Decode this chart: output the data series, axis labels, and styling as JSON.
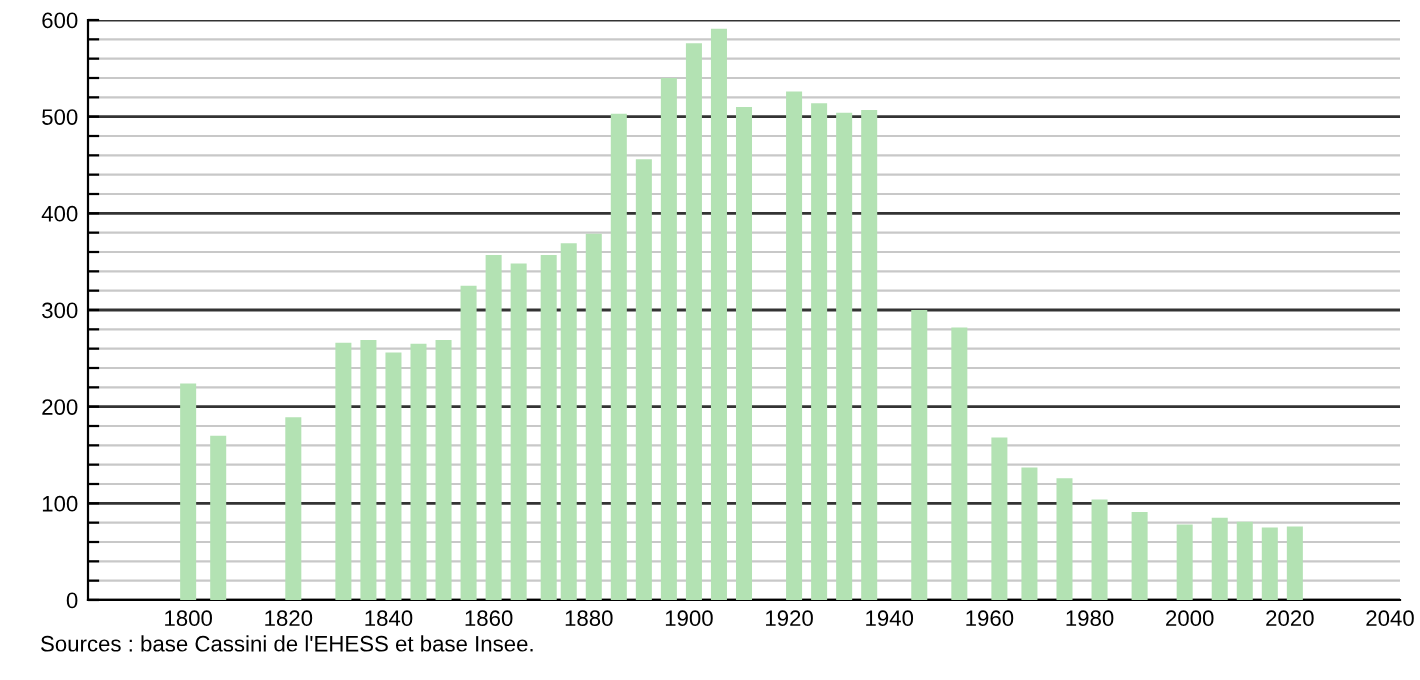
{
  "chart_data": {
    "type": "bar",
    "x": [
      1800,
      1806,
      1821,
      1831,
      1836,
      1841,
      1846,
      1851,
      1856,
      1861,
      1866,
      1872,
      1876,
      1881,
      1886,
      1891,
      1896,
      1901,
      1906,
      1911,
      1921,
      1926,
      1931,
      1936,
      1946,
      1954,
      1962,
      1968,
      1975,
      1982,
      1990,
      1999,
      2006,
      2011,
      2016,
      2021
    ],
    "values": [
      224,
      170,
      189,
      266,
      269,
      256,
      265,
      269,
      325,
      357,
      348,
      357,
      369,
      379,
      503,
      456,
      540,
      576,
      591,
      510,
      526,
      514,
      504,
      507,
      300,
      282,
      168,
      137,
      126,
      104,
      91,
      78,
      85,
      81,
      75,
      76
    ],
    "color": "#b3e2b3",
    "xlim": [
      1780,
      2042
    ],
    "xticks": [
      1800,
      1820,
      1840,
      1860,
      1880,
      1900,
      1920,
      1940,
      1960,
      1980,
      2000,
      2020,
      2040
    ],
    "ylim": [
      0,
      600
    ],
    "yticks": [
      0,
      {
        "value": 20,
        "label": null
      },
      {
        "value": 40,
        "label": null
      },
      {
        "value": 60,
        "label": null
      },
      {
        "value": 80,
        "label": null
      },
      100,
      {
        "value": 120,
        "label": null
      },
      {
        "value": 140,
        "label": null
      },
      {
        "value": 160,
        "label": null
      },
      {
        "value": 180,
        "label": null
      },
      200,
      {
        "value": 220,
        "label": null
      },
      {
        "value": 240,
        "label": null
      },
      {
        "value": 260,
        "label": null
      },
      {
        "value": 280,
        "label": null
      },
      300,
      {
        "value": 320,
        "label": null
      },
      {
        "value": 340,
        "label": null
      },
      {
        "value": 360,
        "label": null
      },
      {
        "value": 380,
        "label": null
      },
      400,
      {
        "value": 420,
        "label": null
      },
      {
        "value": 440,
        "label": null
      },
      {
        "value": 460,
        "label": null
      },
      {
        "value": 480,
        "label": null
      },
      500,
      {
        "value": 520,
        "label": null
      },
      {
        "value": 540,
        "label": null
      },
      {
        "value": 560,
        "label": null
      },
      {
        "value": 580,
        "label": null
      },
      600
    ],
    "grid": "y",
    "annotations": [
      "Sources : base Cassini de l'EHESS et base Insee."
    ]
  }
}
